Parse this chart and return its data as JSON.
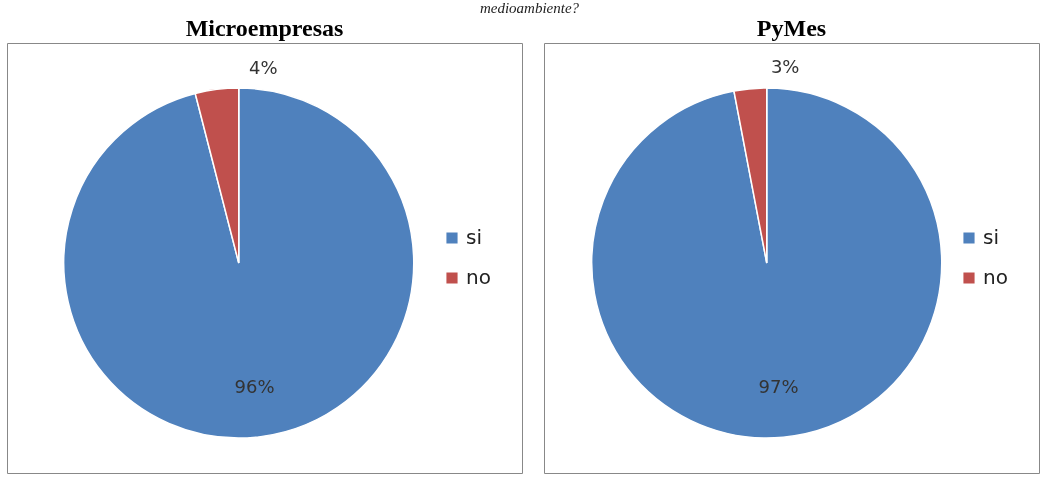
{
  "chart_data": [
    {
      "type": "pie",
      "title": "Microempresas",
      "annotations": [
        "medioambiente?"
      ],
      "categories": [
        "si",
        "no"
      ],
      "values": [
        96,
        4
      ],
      "colors": [
        "#4f81bd",
        "#c0504d"
      ],
      "value_labels": [
        "96%",
        "4%"
      ],
      "legend": "right"
    },
    {
      "type": "pie",
      "title": "PyMes",
      "categories": [
        "si",
        "no"
      ],
      "values": [
        97,
        3
      ],
      "colors": [
        "#4f81bd",
        "#c0504d"
      ],
      "value_labels": [
        "97%",
        "3%"
      ],
      "legend": "right"
    }
  ]
}
